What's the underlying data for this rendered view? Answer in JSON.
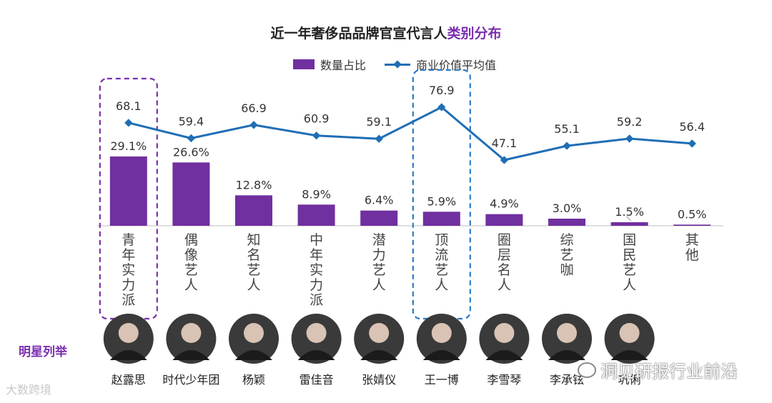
{
  "title_main": "近一年奢侈品品牌官宣代言人",
  "title_highlight": "类别分布",
  "legend": {
    "bar": "数量占比",
    "line": "商业价值平均值"
  },
  "celeb_section_label": "明星列举",
  "watermark_left": "大数跨境",
  "watermark_right": "洞见研报行业前沿",
  "colors": {
    "bar": "#7030a0",
    "line": "#1f6eb5",
    "purple_box": "#7b2fb0",
    "blue_box": "#2a7cc7"
  },
  "chart_data": {
    "type": "bar",
    "title": "近一年奢侈品品牌官宣代言人类别分布",
    "categories": [
      "青年实力派",
      "偶像艺人",
      "知名艺人",
      "中年实力派",
      "潜力艺人",
      "顶流艺人",
      "圈层名人",
      "综艺咖",
      "国民艺人",
      "其他"
    ],
    "series": [
      {
        "name": "数量占比",
        "type": "bar",
        "values": [
          29.1,
          26.6,
          12.8,
          8.9,
          6.4,
          5.9,
          4.9,
          3.0,
          1.5,
          0.5
        ],
        "labels": [
          "29.1%",
          "26.6%",
          "12.8%",
          "8.9%",
          "6.4%",
          "5.9%",
          "4.9%",
          "3.0%",
          "1.5%",
          "0.5%"
        ]
      },
      {
        "name": "商业价值平均值",
        "type": "line",
        "values": [
          68.1,
          59.4,
          66.9,
          60.9,
          59.1,
          76.9,
          47.1,
          55.1,
          59.2,
          56.4
        ],
        "labels": [
          "68.1",
          "59.4",
          "66.9",
          "60.9",
          "59.1",
          "76.9",
          "47.1",
          "55.1",
          "59.2",
          "56.4"
        ]
      }
    ],
    "bar_range": [
      0,
      30
    ],
    "line_range": [
      30,
      80
    ],
    "highlight_categories": [
      "青年实力派",
      "顶流艺人"
    ]
  },
  "celebrities": [
    "赵露思",
    "时代少年团",
    "杨颖",
    "雷佳音",
    "张婧仪",
    "王一博",
    "李雪琴",
    "李承铉",
    "巩俐",
    ""
  ]
}
